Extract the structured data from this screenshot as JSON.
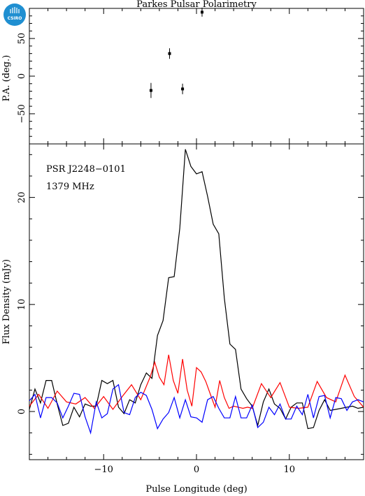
{
  "chart_data": {
    "type": "line",
    "title": "Parkes Pulsar Polarimetry",
    "logo_text": "CSIRO",
    "annotations": [
      "PSR J2248−0101",
      "1379 MHz"
    ],
    "xlabel": "Pulse Longitude (deg)",
    "xlim": [
      -18,
      18
    ],
    "x_ticks": [
      -10,
      0,
      10
    ],
    "x_tick_labels": [
      "−10",
      "0",
      "10"
    ],
    "top_panel": {
      "ylabel": "P.A. (deg.)",
      "ylim": [
        -90,
        90
      ],
      "y_ticks": [
        -50,
        0,
        50
      ],
      "y_tick_labels": [
        "−50",
        "0",
        "50"
      ],
      "points": [
        {
          "x": -4.9,
          "y": -19,
          "err": 10
        },
        {
          "x": -2.9,
          "y": 30,
          "err": 7
        },
        {
          "x": -1.5,
          "y": -17,
          "err": 7
        },
        {
          "x": 0.6,
          "y": 85,
          "err": 6
        }
      ]
    },
    "bottom_panel": {
      "ylabel": "Flux Density (mJy)",
      "ylim": [
        -4.5,
        25
      ],
      "y_ticks": [
        0,
        10,
        20
      ],
      "y_tick_labels": [
        "0",
        "10",
        "20"
      ],
      "series": [
        {
          "color": "#000000",
          "x": [
            -18,
            -17.4,
            -16.8,
            -16.2,
            -15.6,
            -15,
            -14.4,
            -13.8,
            -13.2,
            -12.6,
            -12,
            -11.4,
            -10.8,
            -10.2,
            -9.6,
            -9,
            -8.4,
            -7.8,
            -7.2,
            -6.6,
            -6,
            -5.4,
            -4.8,
            -4.2,
            -3.6,
            -3,
            -2.4,
            -1.8,
            -1.2,
            -0.6,
            0,
            0.6,
            1.2,
            1.8,
            2.4,
            3,
            3.6,
            4.2,
            4.8,
            5.4,
            6,
            6.6,
            7.2,
            7.8,
            8.4,
            9,
            9.6,
            10.2,
            10.8,
            11.4,
            12,
            12.6,
            13.2,
            13.8,
            14.4,
            15,
            15.6,
            16.2,
            16.8,
            17.4,
            18
          ],
          "y": [
            0.2,
            2.1,
            0.8,
            2.9,
            2.9,
            0.7,
            -1.3,
            -1.1,
            0.4,
            -0.5,
            0.7,
            0.5,
            0.5,
            2.9,
            2.6,
            2.9,
            0.4,
            -0.2,
            1.1,
            0.8,
            2.5,
            3.6,
            3.1,
            7.1,
            8.5,
            12.5,
            12.6,
            17.1,
            24.5,
            22.9,
            22.2,
            22.4,
            20.1,
            17.5,
            16.6,
            10.6,
            6.3,
            5.8,
            2.1,
            1.2,
            0.5,
            -1.3,
            0.9,
            2.1,
            0.7,
            0.3,
            -0.7,
            0.4,
            0.8,
            0.8,
            -1.6,
            -1.5,
            0.1,
            1.1,
            0.1,
            0.2,
            0.3,
            0.4,
            0.5,
            0.3,
            0.4
          ]
        },
        {
          "color": "#ff0000",
          "x": [
            -18,
            -17,
            -16,
            -15,
            -14,
            -13,
            -12,
            -11,
            -10,
            -9,
            -8,
            -7,
            -6,
            -5,
            -4.5,
            -4,
            -3.5,
            -3,
            -2.5,
            -2,
            -1.5,
            -1,
            -0.5,
            0,
            0.5,
            1,
            1.5,
            2,
            2.5,
            3,
            3.5,
            4,
            4.5,
            5,
            5.5,
            6,
            7,
            8,
            9,
            10,
            11,
            12,
            13,
            14,
            15,
            16,
            17,
            18
          ],
          "y": [
            0.5,
            1.6,
            0.3,
            1.9,
            0.9,
            0.7,
            1.3,
            0.3,
            1.4,
            0.2,
            1.4,
            2.5,
            1.1,
            3.2,
            4.6,
            3.2,
            2.5,
            5.3,
            2.9,
            1.7,
            4.9,
            2.0,
            0.5,
            4.1,
            3.7,
            2.8,
            1.6,
            0.4,
            2.9,
            1.3,
            0.3,
            0.5,
            0.4,
            0.3,
            0.4,
            0.3,
            2.6,
            1.3,
            2.7,
            0.4,
            0.3,
            0.4,
            2.8,
            1.3,
            0.9,
            3.4,
            1.4,
            0.4
          ]
        },
        {
          "color": "#0000ff",
          "x": [
            -18,
            -17.4,
            -16.8,
            -16.2,
            -15.6,
            -15,
            -14.4,
            -13.8,
            -13.2,
            -12.6,
            -12,
            -11.4,
            -10.8,
            -10.2,
            -9.6,
            -9,
            -8.4,
            -7.8,
            -7.2,
            -6.6,
            -6,
            -5.4,
            -4.8,
            -4.2,
            -3.6,
            -3,
            -2.4,
            -1.8,
            -1.2,
            -0.6,
            0,
            0.6,
            1.2,
            1.8,
            2.4,
            3,
            3.6,
            4.2,
            4.8,
            5.4,
            6,
            6.6,
            7.2,
            7.8,
            8.4,
            9,
            9.6,
            10.2,
            10.8,
            11.4,
            12,
            12.6,
            13.2,
            13.8,
            14.4,
            15,
            15.6,
            16.2,
            16.8,
            17.4,
            18
          ],
          "y": [
            1.0,
            1.6,
            -0.6,
            1.3,
            1.3,
            0.8,
            -0.6,
            0.5,
            1.7,
            1.6,
            -0.5,
            -2.0,
            0.9,
            -0.6,
            -0.2,
            2.1,
            2.5,
            -0.1,
            -0.3,
            1.3,
            1.8,
            1.5,
            0.2,
            -1.6,
            -0.7,
            -0.1,
            1.3,
            -0.6,
            1.1,
            -0.5,
            -0.6,
            -1.0,
            1.1,
            1.4,
            0.3,
            -0.6,
            -0.6,
            1.4,
            -0.6,
            -0.6,
            0.6,
            -1.5,
            -1.0,
            0.4,
            -0.3,
            0.7,
            -0.7,
            -0.7,
            0.5,
            -0.3,
            1.6,
            -0.6,
            1.4,
            1.5,
            -0.6,
            1.3,
            1.2,
            0.1,
            0.9,
            1.1,
            0.9
          ]
        }
      ]
    }
  }
}
